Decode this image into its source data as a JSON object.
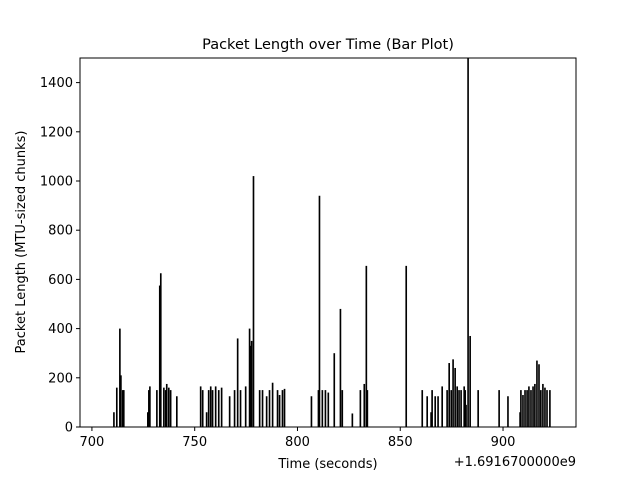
{
  "chart_data": {
    "type": "bar",
    "title": "Packet Length over Time (Bar Plot)",
    "x_label": "Time (seconds)",
    "y_label": "Packet Length (MTU-sized chunks)",
    "x_offset_label": "+1.6916700000e9",
    "color": "#000000",
    "x": [
      710.7,
      712.1,
      713.6,
      714.1,
      715.0,
      715.5,
      727.2,
      727.7,
      728.2,
      731.6,
      733.0,
      733.5,
      735.0,
      735.9,
      736.4,
      737.4,
      738.3,
      741.3,
      752.9,
      753.9,
      755.8,
      756.8,
      757.8,
      758.7,
      760.2,
      761.7,
      763.1,
      767.0,
      769.4,
      770.9,
      772.3,
      774.8,
      776.7,
      777.2,
      777.7,
      778.6,
      781.6,
      783.0,
      785.0,
      786.4,
      787.9,
      790.3,
      791.3,
      792.7,
      793.7,
      806.8,
      810.2,
      810.7,
      812.1,
      813.6,
      815.0,
      817.9,
      820.9,
      821.8,
      826.7,
      830.6,
      832.5,
      833.5,
      834.0,
      852.9,
      860.7,
      863.1,
      865.0,
      865.5,
      867.0,
      868.4,
      870.4,
      872.8,
      873.8,
      874.8,
      875.7,
      876.7,
      877.7,
      878.6,
      879.6,
      881.1,
      881.6,
      882.0,
      883.0,
      884.0,
      887.9,
      898.1,
      902.4,
      908.3,
      908.7,
      909.7,
      910.7,
      911.7,
      912.6,
      913.6,
      914.6,
      915.5,
      916.5,
      917.5,
      918.4,
      919.4,
      920.4,
      921.4,
      922.8
    ],
    "values": [
      60,
      160,
      400,
      210,
      150,
      150,
      60,
      150,
      165,
      150,
      575,
      625,
      160,
      150,
      175,
      160,
      150,
      125,
      165,
      150,
      60,
      150,
      165,
      150,
      165,
      150,
      160,
      125,
      150,
      360,
      150,
      165,
      400,
      330,
      350,
      1020,
      150,
      150,
      125,
      150,
      180,
      150,
      130,
      150,
      155,
      125,
      150,
      940,
      150,
      150,
      140,
      300,
      480,
      150,
      55,
      150,
      175,
      655,
      150,
      655,
      150,
      125,
      60,
      150,
      125,
      125,
      165,
      150,
      260,
      150,
      275,
      240,
      165,
      150,
      150,
      165,
      150,
      90,
      1500,
      370,
      150,
      150,
      125,
      60,
      150,
      130,
      150,
      150,
      165,
      150,
      165,
      175,
      270,
      255,
      150,
      175,
      160,
      150,
      150
    ],
    "bar_width": 0.8,
    "xlim": [
      694.2,
      935.5
    ],
    "ylim": [
      0,
      1500
    ],
    "xticks": [
      700,
      750,
      800,
      850,
      900
    ],
    "yticks": [
      0,
      200,
      400,
      600,
      800,
      1000,
      1200,
      1400
    ]
  }
}
